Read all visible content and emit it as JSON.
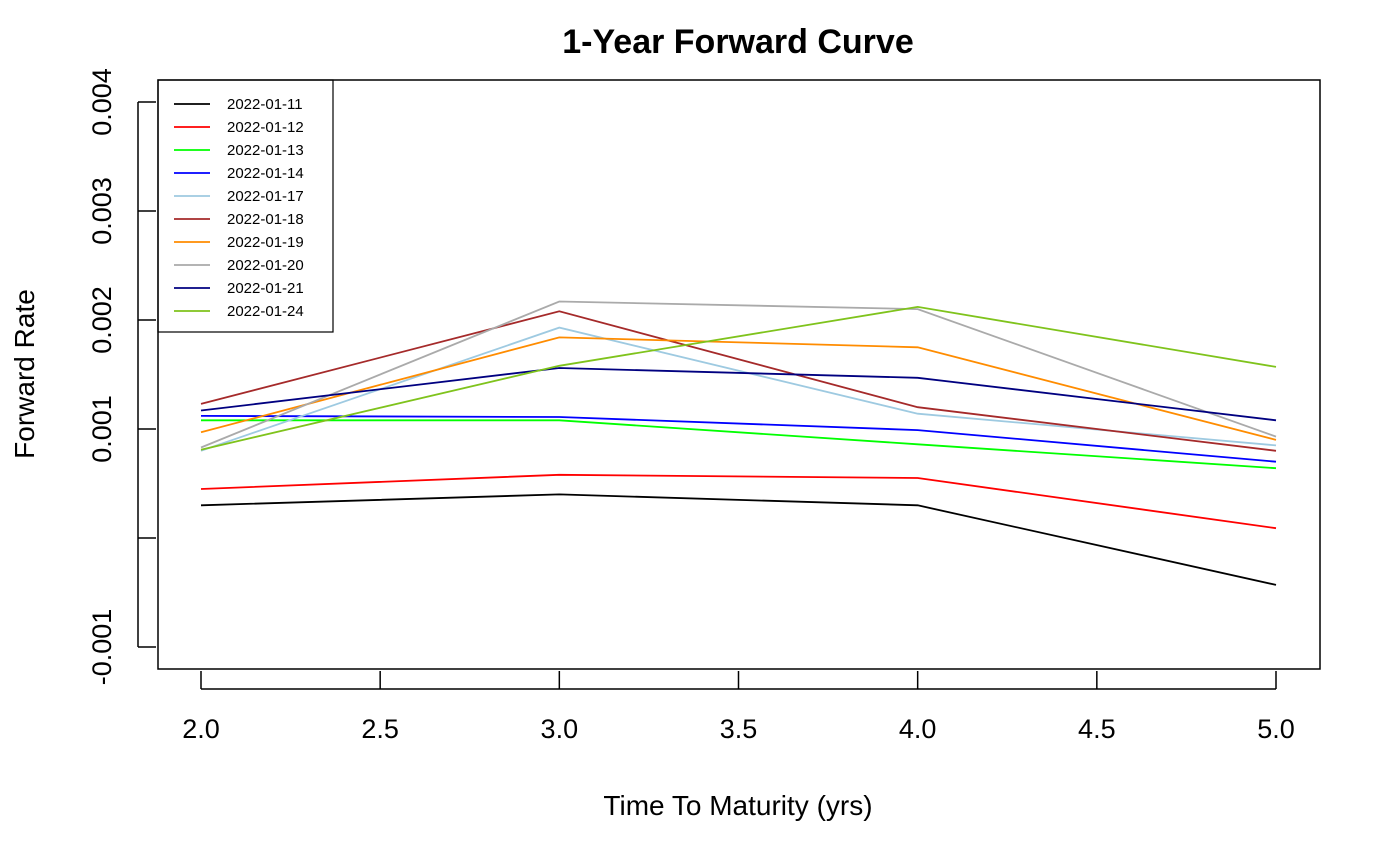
{
  "chart_data": {
    "type": "line",
    "title": "1-Year Forward Curve",
    "xlabel": "Time To Maturity (yrs)",
    "ylabel": "Forward Rate",
    "xlim": [
      2.0,
      5.0
    ],
    "ylim": [
      -0.001,
      0.004
    ],
    "x": [
      2,
      3,
      4,
      5
    ],
    "x_ticks": [
      "2.0",
      "2.5",
      "3.0",
      "3.5",
      "4.0",
      "4.5",
      "5.0"
    ],
    "y_ticks": [
      "-0.001",
      "",
      "0.001",
      "0.002",
      "0.003",
      "0.004"
    ],
    "grid": false,
    "legend_position": "top-left",
    "series": [
      {
        "name": "2022-01-11",
        "color": "#000000",
        "values": [
          0.0003,
          0.0004,
          0.0003,
          -0.00043
        ]
      },
      {
        "name": "2022-01-12",
        "color": "#ff0000",
        "values": [
          0.00045,
          0.00058,
          0.00055,
          9e-05
        ]
      },
      {
        "name": "2022-01-13",
        "color": "#00ff00",
        "values": [
          0.00108,
          0.00108,
          0.00086,
          0.00064
        ]
      },
      {
        "name": "2022-01-14",
        "color": "#0000ff",
        "values": [
          0.00112,
          0.00111,
          0.00099,
          0.0007
        ]
      },
      {
        "name": "2022-01-17",
        "color": "#9ecae1",
        "values": [
          0.0008,
          0.00193,
          0.00114,
          0.00085
        ]
      },
      {
        "name": "2022-01-18",
        "color": "#a52a2a",
        "values": [
          0.00123,
          0.00208,
          0.0012,
          0.0008
        ]
      },
      {
        "name": "2022-01-19",
        "color": "#ff8c00",
        "values": [
          0.00097,
          0.00184,
          0.00175,
          0.0009
        ]
      },
      {
        "name": "2022-01-20",
        "color": "#aaaaaa",
        "values": [
          0.00083,
          0.00217,
          0.0021,
          0.00093
        ]
      },
      {
        "name": "2022-01-21",
        "color": "#000080",
        "values": [
          0.00117,
          0.00156,
          0.00147,
          0.00108
        ]
      },
      {
        "name": "2022-01-24",
        "color": "#7fc31c",
        "values": [
          0.00081,
          0.00158,
          0.00212,
          0.00157
        ]
      }
    ]
  }
}
